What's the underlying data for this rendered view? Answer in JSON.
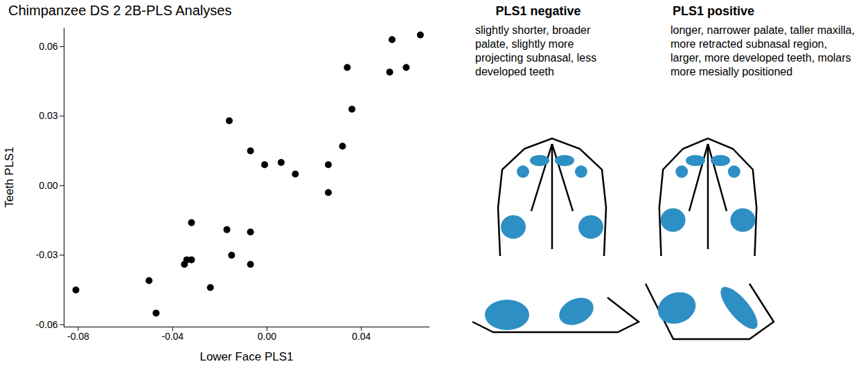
{
  "chart_data": {
    "type": "scatter",
    "title": "Chimpanzee DS 2 2B-PLS Analyses",
    "x_label": "Lower Face PLS1",
    "y_label": "Teeth PLS1",
    "x": [
      -0.081,
      -0.05,
      -0.047,
      -0.035,
      -0.034,
      -0.032,
      -0.032,
      -0.024,
      -0.017,
      -0.016,
      -0.015,
      -0.007,
      -0.007,
      -0.007,
      -0.001,
      0.006,
      0.012,
      0.026,
      0.026,
      0.032,
      0.034,
      0.036,
      0.052,
      0.053,
      0.059,
      0.065
    ],
    "values": [
      -0.045,
      -0.041,
      -0.055,
      -0.034,
      -0.032,
      -0.032,
      -0.016,
      -0.044,
      -0.019,
      0.028,
      -0.03,
      0.015,
      -0.02,
      -0.034,
      0.009,
      0.01,
      0.005,
      0.009,
      -0.003,
      0.017,
      0.051,
      0.033,
      0.049,
      0.063,
      0.051,
      0.065
    ],
    "color": "#000000",
    "xlim": [
      -0.086,
      0.069
    ],
    "ylim": [
      -0.061,
      0.068
    ],
    "xticks": [
      -0.08,
      -0.04,
      {
        "value": 0,
        "label": "0.00"
      },
      0.04
    ],
    "yticks": [
      -0.06,
      -0.03,
      {
        "value": 0,
        "label": "0.00"
      },
      0.03,
      0.06
    ],
    "grid": false
  },
  "panels": [
    {
      "title": "PLS1 negative",
      "description": "slightly shorter, broader palate, slightly more projecting subnasal, less developed teeth"
    },
    {
      "title": "PLS1 positive",
      "description": "longer, narrower palate, taller maxilla, more retracted subnasal region, larger, more developed teeth, molars more mesially positioned"
    }
  ]
}
